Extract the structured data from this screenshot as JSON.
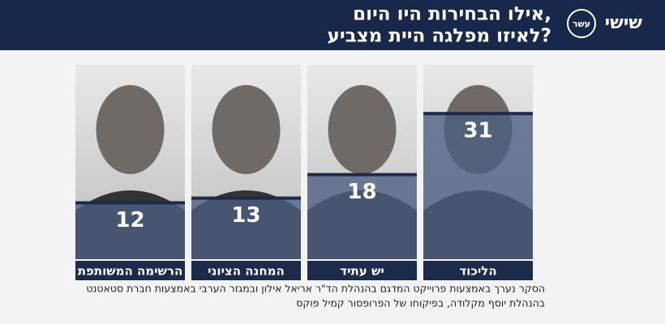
{
  "chart_data": {
    "type": "bar",
    "title": [
      "אילו הבחירות היו היום,",
      "לאיזו מפלגה היית מצביע?"
    ],
    "logo": {
      "main": "שישי",
      "sub": "עשר"
    },
    "categories": [
      "הרשימה המשותפת",
      "המחנה הציוני",
      "יש עתיד",
      "הליכוד"
    ],
    "values": [
      12,
      13,
      18,
      31
    ],
    "color": "#4d5f82",
    "footnote": [
      "הסקר נערך באמצעות פרוייקט המדגם בהנהלת הד\"ר אריאל אילון ובמגזר הערבי באמצעות חברת סטאטנט",
      "בהנהלת יוסף מקלודה, בפיקוחו של הפרופסור קמיל פוקס"
    ]
  }
}
